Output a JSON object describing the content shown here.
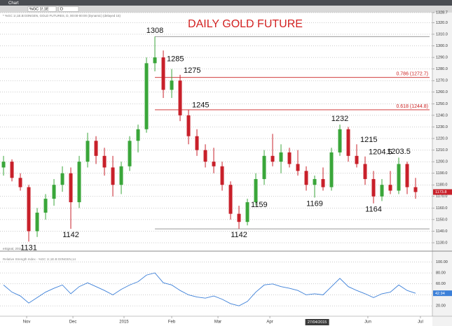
{
  "window_title": "Chart",
  "symbol": "%GC 1!,1E",
  "interval": "D",
  "chart_data": {
    "type": "candlestick",
    "header": "* %GC 1!,1E.B:G0NGEN, GOLD FUTURES, D, 00:00-00:00 (Dynamic) (delayed 15)",
    "title": "DAILY GOLD FUTURE",
    "watermark": "eSignal, 2015",
    "cursor_label": "27/04/2015",
    "up_color": "#3aa63a",
    "down_color": "#c8202a",
    "grid": true,
    "xlim": [
      -0.42,
      51
    ],
    "xticks": [
      {
        "value": 2.75,
        "label": "Nov"
      },
      {
        "value": 8.25,
        "label": "Dec"
      },
      {
        "value": 14.33,
        "label": "2015"
      },
      {
        "value": 20,
        "label": "Feb"
      },
      {
        "value": 25.5,
        "label": "Mar"
      },
      {
        "value": 31.67,
        "label": "Apr"
      },
      {
        "value": 43.33,
        "label": "Jun"
      },
      {
        "value": 49.58,
        "label": "Jul"
      }
    ],
    "ylim": [
      1125,
      1328.7
    ],
    "yticks": [
      {
        "value": 1328.7,
        "label": "1328.7"
      },
      {
        "value": 1320,
        "label": "1320.0"
      },
      {
        "value": 1310,
        "label": "1310.0"
      },
      {
        "value": 1300,
        "label": "1300.0"
      },
      {
        "value": 1290,
        "label": "1290.0"
      },
      {
        "value": 1280,
        "label": "1280.0"
      },
      {
        "value": 1270,
        "label": "1270.0"
      },
      {
        "value": 1260,
        "label": "1260.0"
      },
      {
        "value": 1250,
        "label": "1250.0"
      },
      {
        "value": 1240,
        "label": "1240.0"
      },
      {
        "value": 1230,
        "label": "1230.0"
      },
      {
        "value": 1220,
        "label": "1220.0"
      },
      {
        "value": 1210,
        "label": "1210.0"
      },
      {
        "value": 1200,
        "label": "1200.0"
      },
      {
        "value": 1190,
        "label": "1190.0"
      },
      {
        "value": 1180,
        "label": "1180.0"
      },
      {
        "value": 1170,
        "label": "1170.0"
      },
      {
        "value": 1160,
        "label": "1160.0"
      },
      {
        "value": 1150,
        "label": "1150.0"
      },
      {
        "value": 1140,
        "label": "1140.0"
      },
      {
        "value": 1130,
        "label": "1130.0"
      }
    ],
    "candles": {
      "x": [
        0,
        1,
        2,
        3,
        4,
        5,
        6,
        7,
        8,
        9,
        10,
        11,
        12,
        13,
        14,
        15,
        16,
        17,
        18,
        19,
        20,
        21,
        22,
        23,
        24,
        25,
        26,
        27,
        28,
        29,
        30,
        31,
        32,
        33,
        34,
        35,
        36,
        37,
        38,
        39,
        40,
        41,
        42,
        43,
        44,
        45,
        46,
        47,
        48,
        49
      ],
      "open": [
        1195,
        1200,
        1186,
        1178,
        1140,
        1156,
        1168,
        1180,
        1190,
        1165,
        1200,
        1218,
        1205,
        1195,
        1180,
        1196,
        1218,
        1228,
        1285,
        1290,
        1262,
        1270,
        1240,
        1222,
        1210,
        1200,
        1196,
        1180,
        1155,
        1148,
        1165,
        1185,
        1205,
        1200,
        1208,
        1198,
        1192,
        1180,
        1185,
        1178,
        1208,
        1228,
        1205,
        1198,
        1185,
        1170,
        1180,
        1175,
        1198,
        1178
      ],
      "high": [
        1205,
        1202,
        1190,
        1180,
        1160,
        1172,
        1185,
        1196,
        1195,
        1205,
        1225,
        1222,
        1212,
        1205,
        1200,
        1222,
        1232,
        1290,
        1308,
        1296,
        1280,
        1275,
        1245,
        1228,
        1215,
        1212,
        1200,
        1183,
        1162,
        1168,
        1190,
        1210,
        1224,
        1215,
        1212,
        1210,
        1196,
        1188,
        1195,
        1212,
        1232,
        1230,
        1215,
        1204.5,
        1192,
        1185,
        1192,
        1203.5,
        1200,
        1186
      ],
      "low": [
        1188,
        1183,
        1175,
        1131,
        1135,
        1150,
        1162,
        1174,
        1142,
        1160,
        1195,
        1198,
        1188,
        1170,
        1172,
        1192,
        1208,
        1225,
        1278,
        1255,
        1255,
        1235,
        1215,
        1205,
        1195,
        1190,
        1175,
        1150,
        1142,
        1145,
        1162,
        1180,
        1196,
        1190,
        1195,
        1188,
        1175,
        1169,
        1175,
        1175,
        1205,
        1200,
        1195,
        1180,
        1164,
        1166,
        1172,
        1172,
        1172,
        1168
      ],
      "close": [
        1200,
        1186,
        1178,
        1140,
        1156,
        1168,
        1180,
        1190,
        1165,
        1200,
        1218,
        1205,
        1195,
        1180,
        1196,
        1218,
        1228,
        1285,
        1290,
        1262,
        1270,
        1240,
        1222,
        1210,
        1200,
        1196,
        1180,
        1155,
        1148,
        1165,
        1185,
        1205,
        1200,
        1208,
        1198,
        1192,
        1180,
        1185,
        1178,
        1208,
        1228,
        1205,
        1198,
        1185,
        1170,
        1180,
        1175,
        1198,
        1178,
        1173.8
      ]
    },
    "annotations": [
      {
        "value": 1131,
        "x": 3,
        "pos": "below"
      },
      {
        "value": 1142,
        "x": 8,
        "pos": "below"
      },
      {
        "value": 1308,
        "x": 18,
        "pos": "above"
      },
      {
        "value": 1285,
        "x": 19,
        "pos": "right"
      },
      {
        "value": 1275,
        "x": 21,
        "pos": "right"
      },
      {
        "value": 1245,
        "x": 22,
        "pos": "right"
      },
      {
        "value": 1142,
        "x": 28,
        "pos": "below"
      },
      {
        "value": 1159,
        "x": 29,
        "pos": "right"
      },
      {
        "value": 1169,
        "x": 37,
        "pos": "below"
      },
      {
        "value": 1232,
        "x": 40,
        "pos": "above"
      },
      {
        "value": 1215,
        "x": 42,
        "pos": "right"
      },
      {
        "value": 1204.5,
        "x": 43,
        "pos": "right"
      },
      {
        "value": 1164,
        "x": 44,
        "pos": "below"
      },
      {
        "value": 1203.5,
        "x": 47,
        "pos": "above"
      }
    ],
    "levels": [
      {
        "label": "0.786 (1272.7)",
        "value": 1272.7,
        "from": 18,
        "color": "#cc2020"
      },
      {
        "label": "0.618 (1244.8)",
        "value": 1244.8,
        "from": 18,
        "color": "#cc2020"
      }
    ],
    "lines": [
      {
        "value": 1308,
        "from": 18,
        "color": "#777777"
      },
      {
        "value": 1142,
        "from": 18,
        "color": "#777777"
      }
    ],
    "rsi": {
      "title": "Relative Strength Index - %GC 1!,1E.B:G0NGEN,14",
      "color": "#3b7fd8",
      "ylim": [
        10,
        112
      ],
      "yticks": [
        {
          "value": 100,
          "label": "100.00"
        },
        {
          "value": 80,
          "label": "80.00"
        },
        {
          "value": 60,
          "label": "60.00"
        },
        {
          "value": 40,
          "label": "40.00"
        },
        {
          "value": 20,
          "label": "20.00"
        }
      ],
      "values": [
        58,
        45,
        38,
        25,
        35,
        45,
        52,
        58,
        42,
        55,
        62,
        55,
        48,
        40,
        50,
        58,
        64,
        76,
        80,
        62,
        58,
        48,
        40,
        36,
        34,
        38,
        32,
        24,
        20,
        28,
        45,
        58,
        60,
        55,
        52,
        48,
        40,
        42,
        40,
        55,
        70,
        55,
        48,
        42,
        35,
        42,
        45,
        58,
        48,
        42.94
      ]
    }
  }
}
